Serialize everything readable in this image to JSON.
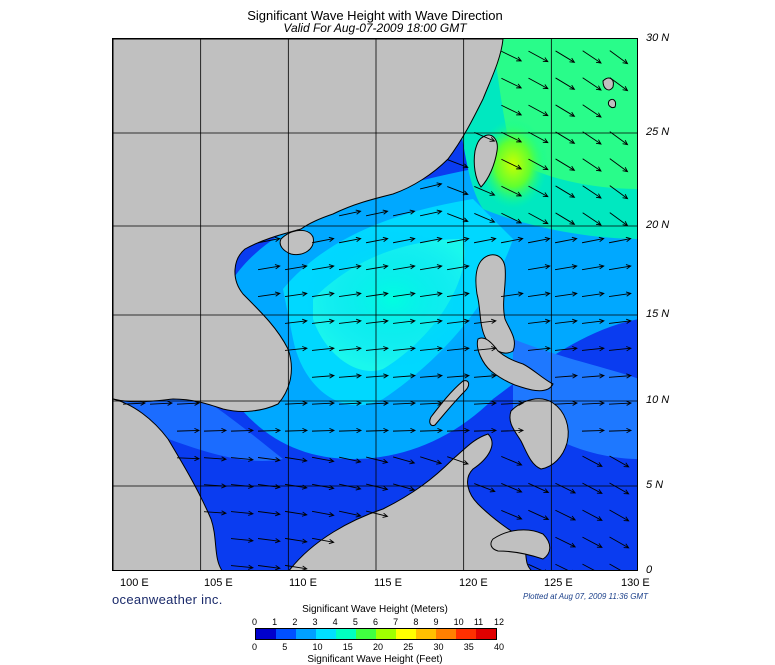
{
  "title": "Significant Wave Height with Wave Direction",
  "subtitle": "Valid For Aug-07-2009 18:00 GMT",
  "brand": "oceanweather inc.",
  "plotted_at": "Plotted at Aug 07, 2009 11:36 GMT",
  "map": {
    "lon_range": [
      100,
      130
    ],
    "lat_range": [
      0,
      30
    ],
    "lat_labels": [
      "30 N",
      "25 N",
      "20 N",
      "15 N",
      "10 N",
      "5 N",
      "0"
    ],
    "lon_labels": [
      "100 E",
      "105 E",
      "110 E",
      "115 E",
      "120 E",
      "125 E",
      "130 E"
    ],
    "land_color": "#c0c0c0",
    "grid": true
  },
  "colorbar": {
    "title_meters": "Significant Wave Height (Meters)",
    "title_feet": "Significant Wave Height (Feet)",
    "meters_ticks": [
      "0",
      "1",
      "2",
      "3",
      "4",
      "5",
      "6",
      "7",
      "8",
      "9",
      "10",
      "11",
      "12"
    ],
    "feet_ticks": [
      "0",
      "5",
      "10",
      "15",
      "20",
      "25",
      "30",
      "35",
      "40"
    ],
    "colors": [
      "#0000cc",
      "#0050ff",
      "#00a0ff",
      "#00e0ff",
      "#00ffc0",
      "#40ff40",
      "#a0ff00",
      "#ffff00",
      "#ffc000",
      "#ff8000",
      "#ff3000",
      "#e00000"
    ]
  }
}
